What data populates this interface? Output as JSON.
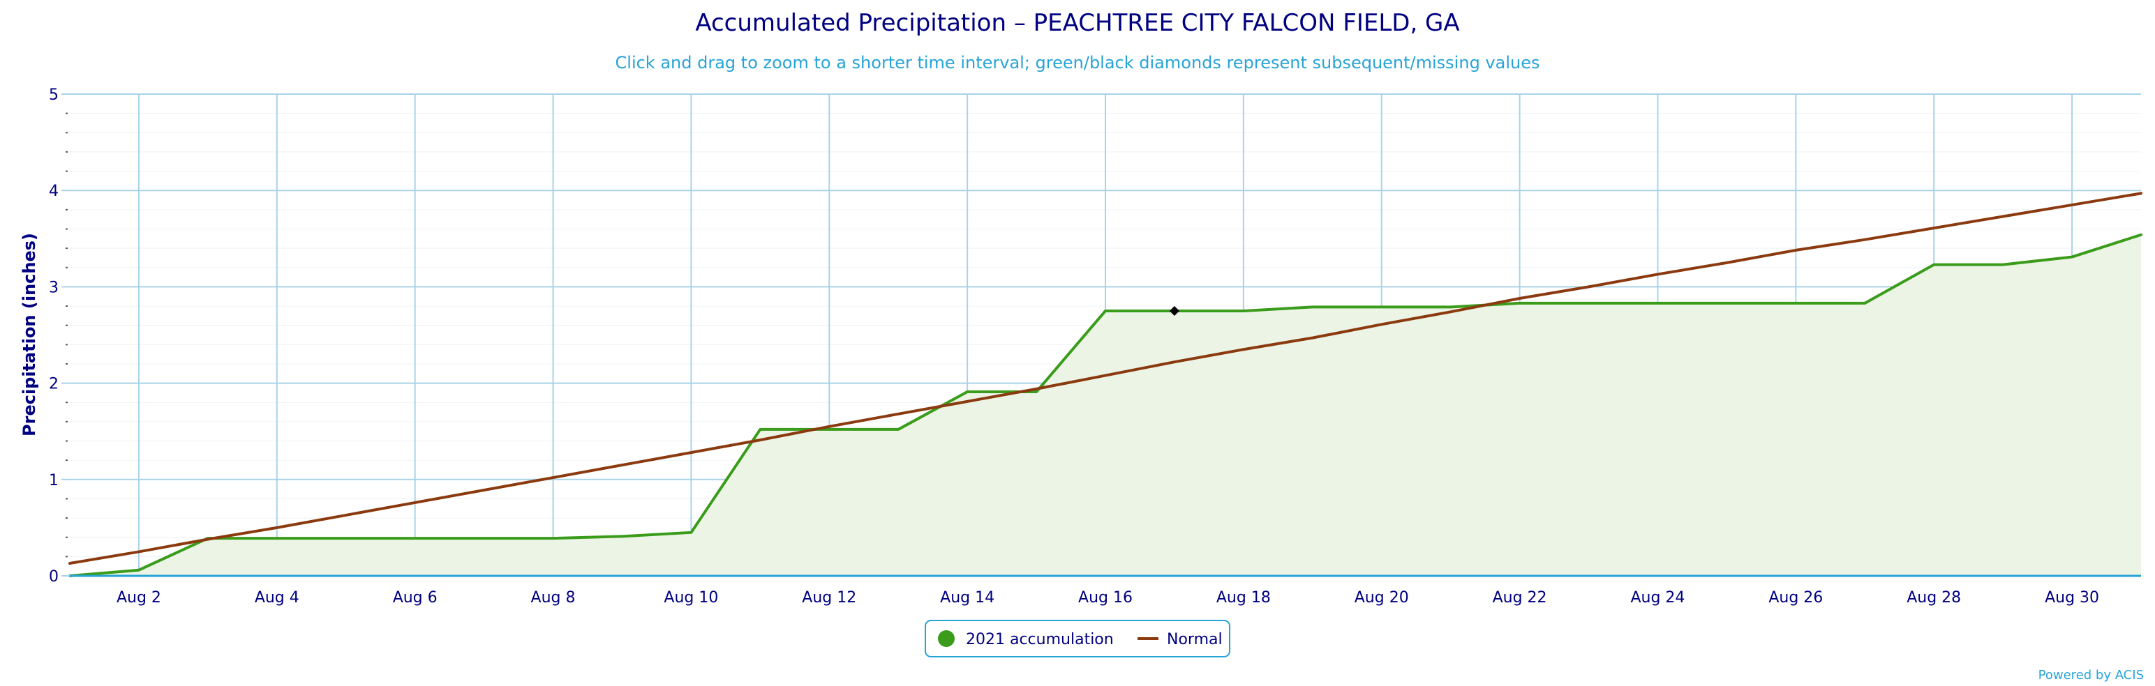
{
  "chart_data": {
    "type": "line",
    "title": "Accumulated Precipitation – PEACHTREE CITY FALCON FIELD, GA",
    "subtitle": "Click and drag to zoom to a shorter time interval; green/black diamonds represent subsequent/missing values",
    "ylabel": "Precipitation (inches)",
    "xlabel": "",
    "ylim": [
      0,
      5
    ],
    "yticks": [
      0,
      1,
      2,
      3,
      4,
      5
    ],
    "xlim": [
      1,
      31
    ],
    "xticks": [
      {
        "day": 2,
        "label": "Aug 2"
      },
      {
        "day": 4,
        "label": "Aug 4"
      },
      {
        "day": 6,
        "label": "Aug 6"
      },
      {
        "day": 8,
        "label": "Aug 8"
      },
      {
        "day": 10,
        "label": "Aug 10"
      },
      {
        "day": 12,
        "label": "Aug 12"
      },
      {
        "day": 14,
        "label": "Aug 14"
      },
      {
        "day": 16,
        "label": "Aug 16"
      },
      {
        "day": 18,
        "label": "Aug 18"
      },
      {
        "day": 20,
        "label": "Aug 20"
      },
      {
        "day": 22,
        "label": "Aug 22"
      },
      {
        "day": 24,
        "label": "Aug 24"
      },
      {
        "day": 26,
        "label": "Aug 26"
      },
      {
        "day": 28,
        "label": "Aug 28"
      },
      {
        "day": 30,
        "label": "Aug 30"
      }
    ],
    "grid": true,
    "legend_position": "bottom-center",
    "series": [
      {
        "name": "2021 accumulation",
        "color": "#3a9c1a",
        "fill": "#ecf4e6",
        "x": [
          1,
          2,
          3,
          4,
          5,
          6,
          7,
          8,
          9,
          10,
          11,
          12,
          13,
          14,
          15,
          16,
          17,
          18,
          19,
          20,
          21,
          22,
          23,
          24,
          25,
          26,
          27,
          28,
          29,
          30,
          31
        ],
        "y": [
          0.0,
          0.06,
          0.39,
          0.39,
          0.39,
          0.39,
          0.39,
          0.39,
          0.41,
          0.45,
          1.52,
          1.52,
          1.52,
          1.91,
          1.91,
          2.75,
          2.75,
          2.75,
          2.79,
          2.79,
          2.79,
          2.83,
          2.83,
          2.83,
          2.83,
          2.83,
          2.83,
          3.23,
          3.23,
          3.31,
          3.54
        ]
      },
      {
        "name": "Normal",
        "color": "#8b3a0f",
        "x": [
          1,
          2,
          3,
          4,
          5,
          6,
          7,
          8,
          9,
          10,
          11,
          12,
          13,
          14,
          15,
          16,
          17,
          18,
          19,
          20,
          21,
          22,
          23,
          24,
          25,
          26,
          27,
          28,
          29,
          30,
          31
        ],
        "y": [
          0.13,
          0.25,
          0.38,
          0.5,
          0.63,
          0.76,
          0.89,
          1.02,
          1.15,
          1.28,
          1.41,
          1.55,
          1.68,
          1.81,
          1.94,
          2.08,
          2.22,
          2.35,
          2.47,
          2.61,
          2.74,
          2.88,
          3.0,
          3.13,
          3.25,
          3.38,
          3.49,
          3.61,
          3.73,
          3.85,
          3.97
        ]
      }
    ],
    "markers": [
      {
        "type": "missing",
        "color": "#000000",
        "x": 17,
        "y": 2.75
      }
    ]
  },
  "credit": "Powered by ACIS"
}
